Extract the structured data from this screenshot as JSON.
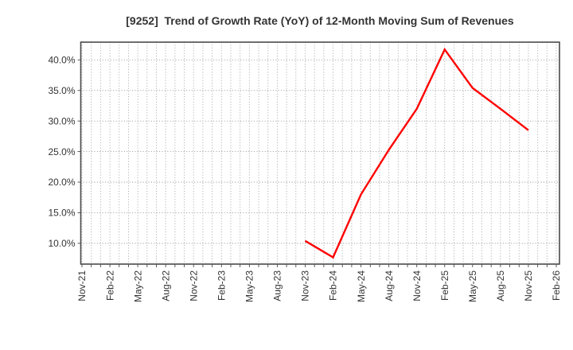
{
  "page": {
    "background": "#ffffff"
  },
  "chart_data": {
    "type": "line",
    "title": "[9252]  Trend of Growth Rate (YoY) of 12-Month Moving Sum of Revenues",
    "x_axis": {
      "labels": [
        "Nov-21",
        "Feb-22",
        "May-22",
        "Aug-22",
        "Nov-22",
        "Feb-23",
        "May-23",
        "Aug-23",
        "Nov-23",
        "Feb-24",
        "May-24",
        "Aug-24",
        "Nov-24",
        "Feb-25",
        "May-25",
        "Aug-25",
        "Nov-25",
        "Feb-26"
      ],
      "months_per_label": 3,
      "n_months": 51,
      "minor_grid": "monthly"
    },
    "y_axis": {
      "ticks": [
        {
          "value": 40,
          "label": "40.0%"
        },
        {
          "value": 35,
          "label": "35.0%"
        },
        {
          "value": 30,
          "label": "30.0%"
        },
        {
          "value": 25,
          "label": "25.0%"
        },
        {
          "value": 20,
          "label": "20.0%"
        },
        {
          "value": 15,
          "label": "15.0%"
        },
        {
          "value": 10,
          "label": "10.0%"
        }
      ],
      "range": [
        6.6,
        42.9
      ],
      "unit": "%"
    },
    "series": [
      {
        "name": "Growth Rate (YoY) of 12-Month Moving Sum of Revenues",
        "color": "#ff0000",
        "points": [
          {
            "x": "Nov-23",
            "y": 10.4
          },
          {
            "x": "Feb-24",
            "y": 7.7
          },
          {
            "x": "May-24",
            "y": 18.0
          },
          {
            "x": "Aug-24",
            "y": 25.3
          },
          {
            "x": "Nov-24",
            "y": 32.0
          },
          {
            "x": "Feb-25",
            "y": 41.7
          },
          {
            "x": "May-25",
            "y": 35.4
          },
          {
            "x": "Aug-25",
            "y": 32.0
          },
          {
            "x": "Nov-25",
            "y": 28.5
          }
        ]
      }
    ],
    "grid": {
      "style": "dotted",
      "color": "#9b9b9b"
    },
    "border_color": "#4a4a4a",
    "text_color": "#333333",
    "legend": "none"
  }
}
